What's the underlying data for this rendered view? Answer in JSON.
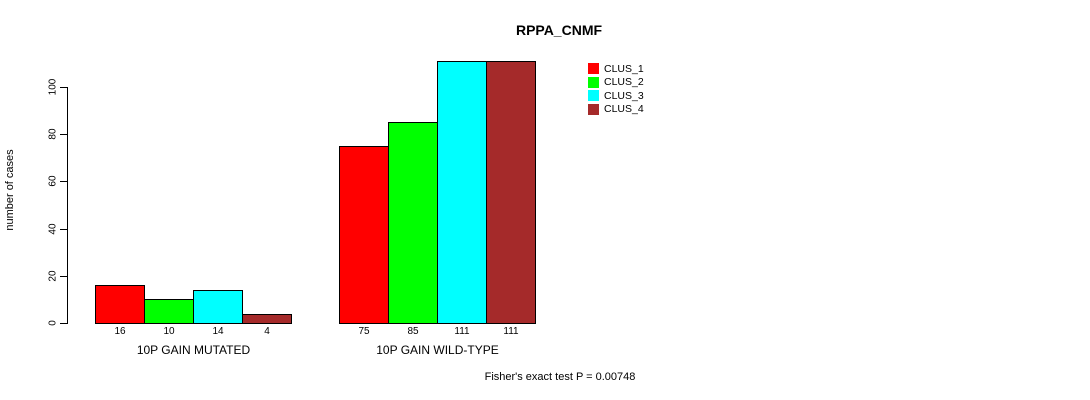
{
  "chart_data": {
    "type": "bar",
    "title": "RPPA_CNMF",
    "ylabel": "number of cases",
    "xlabel": "",
    "ylim": [
      0,
      100
    ],
    "yticks": [
      0,
      20,
      40,
      60,
      80,
      100
    ],
    "grid": false,
    "legend_position": "top-right",
    "series": [
      {
        "name": "CLUS_1",
        "color": "#FF0000"
      },
      {
        "name": "CLUS_2",
        "color": "#00FF00"
      },
      {
        "name": "CLUS_3",
        "color": "#00FFFF"
      },
      {
        "name": "CLUS_4",
        "color": "#A52A2A"
      }
    ],
    "groups": [
      {
        "label": "10P GAIN MUTATED",
        "values": [
          16,
          10,
          14,
          4
        ]
      },
      {
        "label": "10P GAIN WILD-TYPE",
        "values": [
          75,
          85,
          111,
          111
        ]
      }
    ],
    "bar_value_labels_shown": true,
    "footnote": "Fisher's exact test P = 0.00748"
  }
}
